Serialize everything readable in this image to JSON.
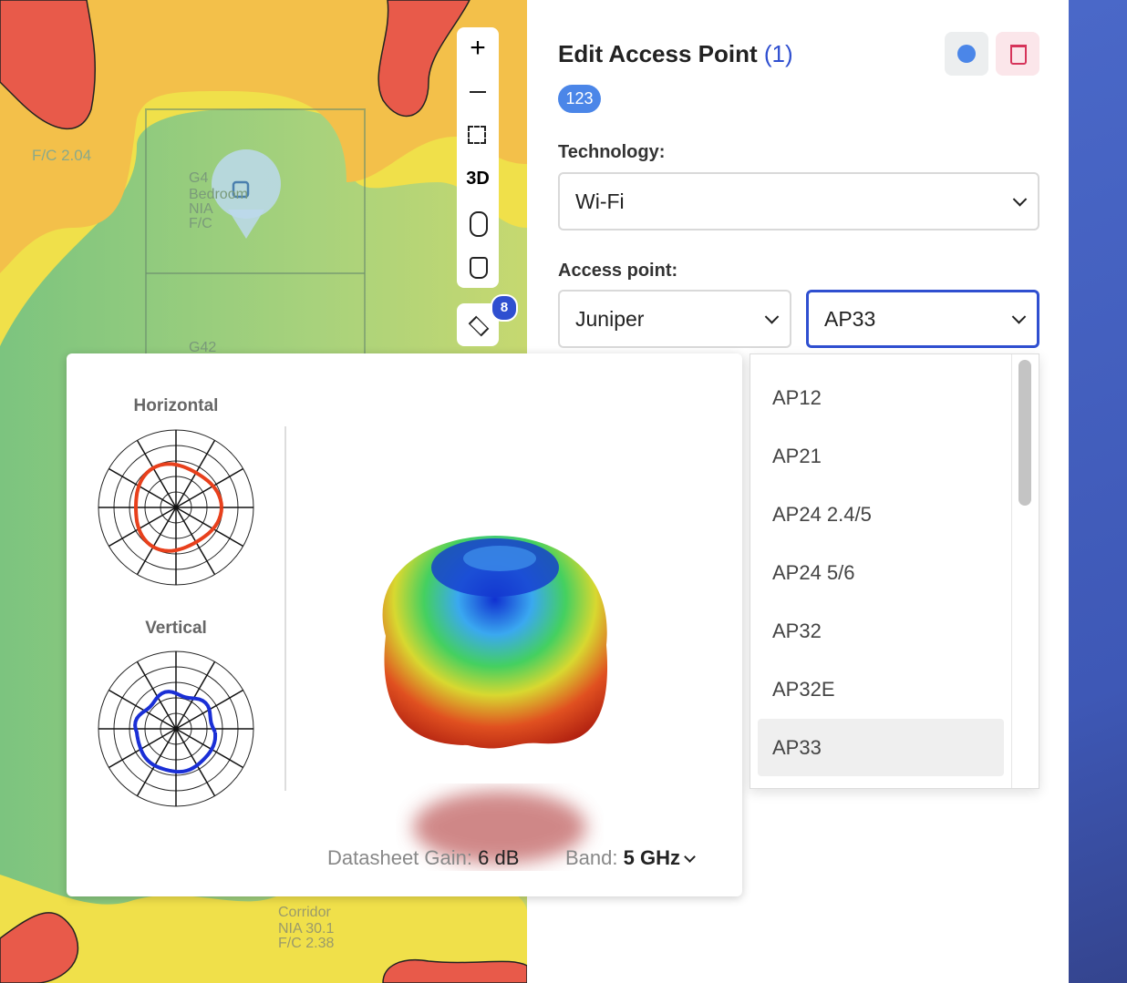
{
  "map": {
    "labels": [
      "F/C 2.04",
      "G4",
      "Bedroom",
      "NIA",
      "F/C",
      "G42",
      "Corridor",
      "NIA 30.1",
      "F/C 2.38"
    ]
  },
  "toolbar": {
    "label_3d": "3D",
    "layers_badge": "8"
  },
  "header": {
    "title": "Edit Access Point",
    "count": "(1)",
    "badge": "123"
  },
  "technology": {
    "label": "Technology:",
    "value": "Wi-Fi"
  },
  "access_point": {
    "label": "Access point:",
    "vendor": "Juniper",
    "model": "AP33"
  },
  "dropdown": {
    "items": [
      "AP12",
      "AP21",
      "AP24 2.4/5",
      "AP24 5/6",
      "AP32",
      "AP32E",
      "AP33"
    ],
    "selected": "AP33"
  },
  "popup": {
    "horizontal_label": "Horizontal",
    "vertical_label": "Vertical",
    "gain_label": "Datasheet Gain:",
    "gain_value": "6 dB",
    "band_label": "Band:",
    "band_value": "5 GHz"
  }
}
